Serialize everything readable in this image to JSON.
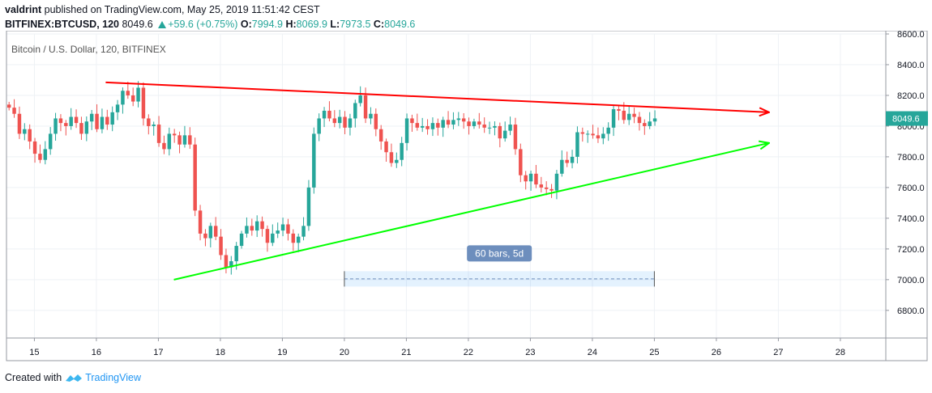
{
  "header": {
    "publisher_line_user": "valdrint",
    "publisher_line_rest": "published on TradingView.com, May 25, 2019 11:51:42 CEST",
    "symbol": "BITFINEX:BTCUSD, 120",
    "last": "8049.6",
    "change": "+59.6 (+0.75%)",
    "o_label": "O:",
    "o": "7994.9",
    "h_label": "H:",
    "h": "8069.9",
    "l_label": "L:",
    "l": "7973.5",
    "c_label": "C:",
    "c": "8049.6"
  },
  "footer": {
    "created_with": "Created with",
    "brand": "TradingView"
  },
  "colors": {
    "up": "#26a69a",
    "down": "#ef5350",
    "resistance": "#ff0000",
    "support": "#00ff00",
    "price_badge": "#26a69a",
    "measure": "#6d8ebd"
  },
  "chart_data": {
    "type": "candlestick",
    "title": "Bitcoin / U.S. Dollar, 120, BITFINEX",
    "x_ticks": [
      "15",
      "16",
      "17",
      "18",
      "19",
      "20",
      "21",
      "22",
      "23",
      "24",
      "25",
      "26",
      "27",
      "28"
    ],
    "y_ticks": [
      "8600.0",
      "8400.0",
      "8200.0",
      "8000.0",
      "7800.0",
      "7600.0",
      "7400.0",
      "7200.0",
      "7000.0",
      "6800.0"
    ],
    "ylim": [
      6620,
      8600
    ],
    "xlim": [
      14.55,
      28.7
    ],
    "last_price_label": "8049.6",
    "grid": true,
    "candles_per_day": 12,
    "candles_start_day": 14.55,
    "closes": [
      8120,
      8080,
      7950,
      7980,
      7900,
      7820,
      7780,
      7850,
      7950,
      8050,
      8020,
      8000,
      8060,
      8020,
      7950,
      8030,
      8080,
      7980,
      8060,
      8010,
      8090,
      8140,
      8230,
      8200,
      8160,
      8250,
      8050,
      8000,
      8010,
      7890,
      7850,
      7950,
      7940,
      7880,
      7940,
      7880,
      7450,
      7300,
      7270,
      7350,
      7280,
      7160,
      7080,
      7120,
      7220,
      7300,
      7350,
      7320,
      7380,
      7330,
      7240,
      7300,
      7320,
      7360,
      7300,
      7240,
      7280,
      7350,
      7600,
      7950,
      8050,
      8100,
      8050,
      8020,
      8060,
      7990,
      8050,
      8150,
      8200,
      8050,
      8080,
      7980,
      7900,
      7830,
      7760,
      7780,
      7890,
      8050,
      8020,
      7990,
      8000,
      7980,
      8020,
      7990,
      8040,
      8010,
      8040,
      8050,
      8030,
      8000,
      8030,
      8010,
      7990,
      7990,
      8000,
      7920,
      7970,
      8010,
      7850,
      7680,
      7640,
      7690,
      7620,
      7600,
      7590,
      7580,
      7690,
      7780,
      7760,
      7800,
      7960,
      7950,
      7950,
      7940,
      7920,
      7950,
      7990,
      8110,
      8100,
      8040,
      8080,
      8060,
      8020,
      8000,
      8030,
      8050
    ],
    "annotations": [
      {
        "type": "line",
        "name": "resistance",
        "from": [
          16.15,
          8285
        ],
        "to": [
          26.85,
          8090
        ],
        "arrow": true
      },
      {
        "type": "line",
        "name": "support",
        "from": [
          17.25,
          7000
        ],
        "to": [
          26.85,
          7890
        ],
        "arrow": true
      },
      {
        "type": "range",
        "label": "60 bars, 5d",
        "from": [
          20.0,
          7005
        ],
        "to": [
          25.0,
          7005
        ],
        "band": [
          6955,
          7055
        ]
      }
    ]
  }
}
